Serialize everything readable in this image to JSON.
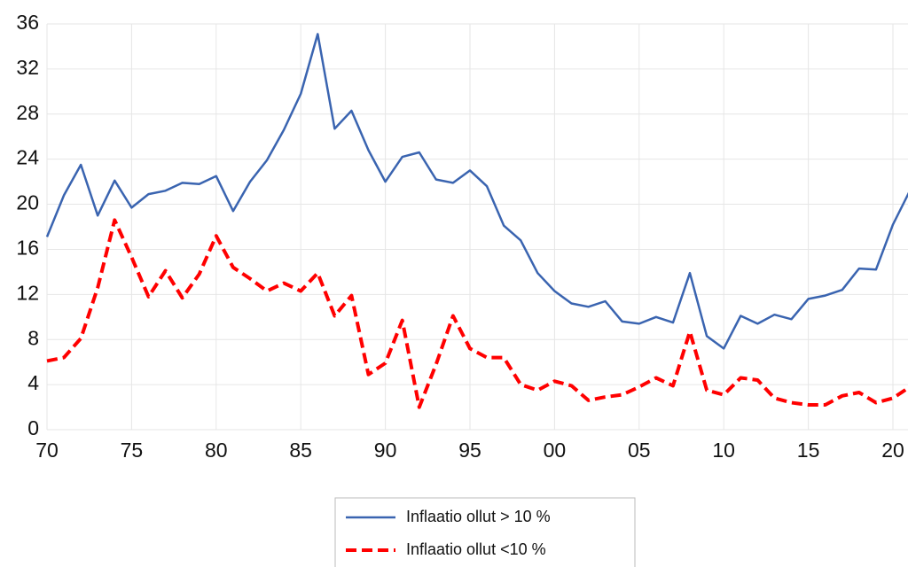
{
  "chart_data": {
    "type": "line",
    "x": [
      1970,
      1971,
      1972,
      1973,
      1974,
      1975,
      1976,
      1977,
      1978,
      1979,
      1980,
      1981,
      1982,
      1983,
      1984,
      1985,
      1986,
      1987,
      1988,
      1989,
      1990,
      1991,
      1992,
      1993,
      1994,
      1995,
      1996,
      1997,
      1998,
      1999,
      2000,
      2001,
      2002,
      2003,
      2004,
      2005,
      2006,
      2007,
      2008,
      2009,
      2010,
      2011,
      2012,
      2013,
      2014,
      2015,
      2016,
      2017,
      2018,
      2019,
      2020,
      2021
    ],
    "series": [
      {
        "name": "Inflaatio ollut > 10 %",
        "color": "#3a64b0",
        "dash": false,
        "values": [
          17.1,
          20.8,
          23.5,
          19.0,
          22.1,
          19.7,
          20.9,
          21.2,
          21.9,
          21.8,
          22.5,
          19.4,
          22.0,
          23.9,
          26.6,
          29.8,
          35.1,
          26.7,
          28.3,
          24.8,
          22.0,
          24.2,
          24.6,
          22.2,
          21.9,
          23.0,
          21.6,
          18.1,
          16.8,
          13.9,
          12.3,
          11.2,
          10.9,
          11.4,
          9.6,
          9.4,
          10.0,
          9.5,
          13.9,
          8.3,
          7.2,
          10.1,
          9.4,
          10.2,
          9.8,
          11.6,
          11.9,
          12.4,
          14.3,
          14.2,
          18.2,
          21.2
        ]
      },
      {
        "name": "Inflaatio ollut <10 %",
        "color": "#ff0000",
        "dash": true,
        "values": [
          6.1,
          6.4,
          8.1,
          12.6,
          18.6,
          15.3,
          11.8,
          14.1,
          11.7,
          13.8,
          17.2,
          14.4,
          13.4,
          12.3,
          13.0,
          12.3,
          13.9,
          10.1,
          11.9,
          4.9,
          5.9,
          9.7,
          2.0,
          5.8,
          10.1,
          7.2,
          6.4,
          6.4,
          4.0,
          3.5,
          4.3,
          3.9,
          2.6,
          2.9,
          3.1,
          3.8,
          4.6,
          3.9,
          8.7,
          3.5,
          3.1,
          4.6,
          4.4,
          2.8,
          2.4,
          2.2,
          2.2,
          3.0,
          3.3,
          2.4,
          2.8,
          3.8
        ]
      }
    ],
    "xlim": [
      1970,
      2021
    ],
    "xticks": [
      {
        "value": 1970,
        "label": "70"
      },
      {
        "value": 1975,
        "label": "75"
      },
      {
        "value": 1980,
        "label": "80"
      },
      {
        "value": 1985,
        "label": "85"
      },
      {
        "value": 1990,
        "label": "90"
      },
      {
        "value": 1995,
        "label": "95"
      },
      {
        "value": 2000,
        "label": "00"
      },
      {
        "value": 2005,
        "label": "05"
      },
      {
        "value": 2010,
        "label": "10"
      },
      {
        "value": 2015,
        "label": "15"
      },
      {
        "value": 2020,
        "label": "20"
      }
    ],
    "ylim": [
      0,
      36
    ],
    "yticks": [
      0,
      4,
      8,
      12,
      16,
      20,
      24,
      28,
      32,
      36
    ],
    "grid": true,
    "legend": "bottom"
  }
}
